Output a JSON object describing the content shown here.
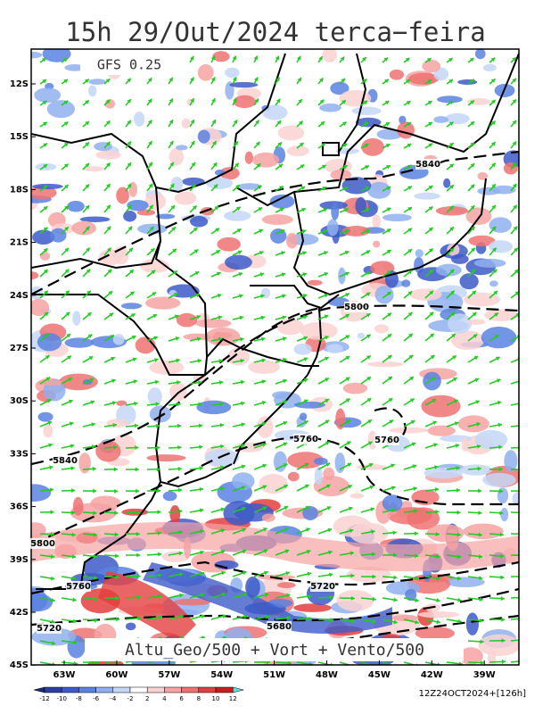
{
  "header": {
    "title": "15h 29/Out/2024 terca−feira"
  },
  "map": {
    "model_label": "GFS 0.25",
    "lat_labels": [
      "12S",
      "15S",
      "18S",
      "21S",
      "24S",
      "27S",
      "30S",
      "33S",
      "36S",
      "39S",
      "42S",
      "45S"
    ],
    "lon_labels": [
      "63W",
      "60W",
      "57W",
      "54W",
      "51W",
      "48W",
      "45W",
      "42W",
      "39W"
    ],
    "contour_labels": [
      "5840",
      "5800",
      "5760",
      "5760",
      "5840",
      "5800",
      "5760",
      "5720",
      "5680",
      "5720"
    ],
    "caption": "Altu_Geo/500 + Vort + Vento/500"
  },
  "colorbar": {
    "labels": [
      -12,
      -10,
      -8,
      -6,
      -4,
      -2,
      2,
      4,
      6,
      8,
      10,
      12
    ],
    "colors": [
      "#1f2a6b",
      "#2c3f9e",
      "#3d5bc8",
      "#5a82e0",
      "#8fb0ee",
      "#c4d7f7",
      "#ffffff",
      "#fad2d2",
      "#f6a3a3",
      "#ef7272",
      "#e53e3e",
      "#c81e1e",
      "#5fe0e0"
    ]
  },
  "footer": {
    "run_label": "12Z24OCT2024+[126h]"
  }
}
